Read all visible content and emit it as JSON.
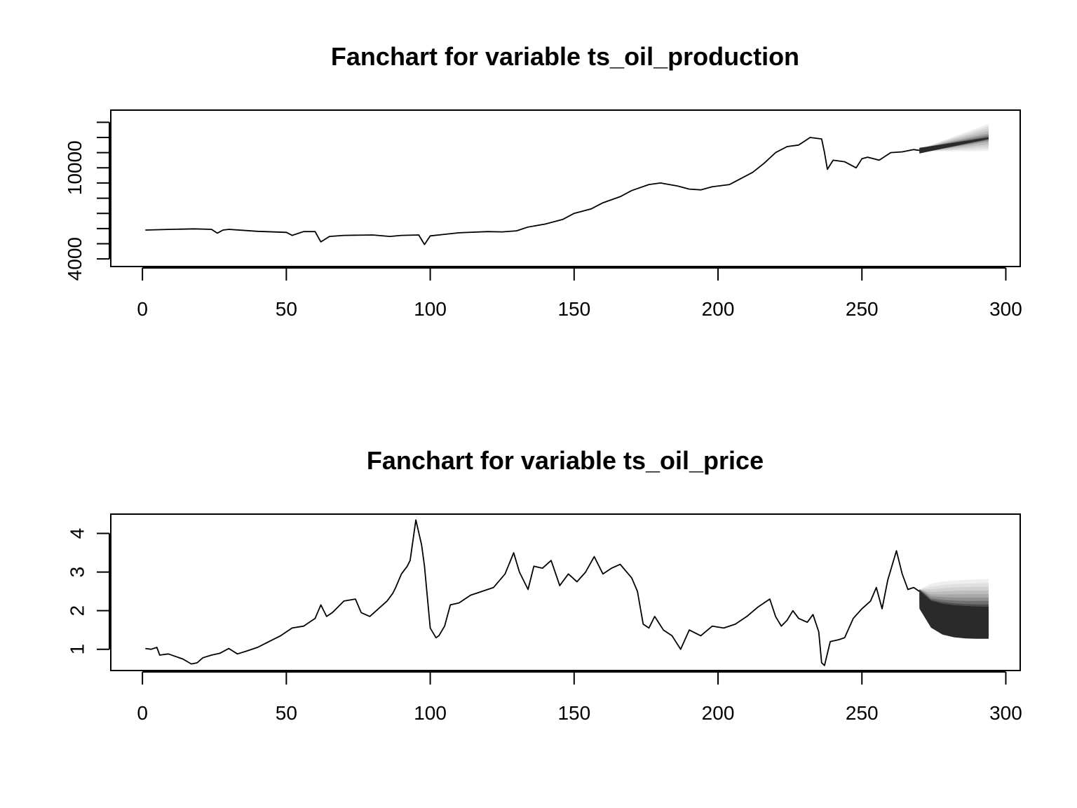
{
  "chart_data": [
    {
      "type": "line",
      "subtype": "fanchart",
      "title": "Fanchart for variable ts_oil_production",
      "xlabel": "",
      "ylabel": "",
      "xlim": [
        -11,
        305
      ],
      "ylim": [
        3500,
        13800
      ],
      "x_ticks": [
        0,
        50,
        100,
        150,
        200,
        250,
        300
      ],
      "y_ticks": [
        4000,
        5000,
        6000,
        7000,
        8000,
        9000,
        10000,
        11000,
        12000,
        13000
      ],
      "y_tick_labels": [
        "4000",
        "",
        "",
        "",
        "",
        "",
        "10000",
        "",
        "",
        ""
      ],
      "grid": false,
      "legend": "none",
      "colors": {
        "line": "#000000",
        "fan": [
          "#efefef",
          "#e0e0e0",
          "#d0d0d0",
          "#bdbdbd",
          "#a8a8a8",
          "#8f8f8f",
          "#707070",
          "#4d4d4d",
          "#2a2a2a"
        ]
      },
      "series": [
        {
          "x": [
            1,
            10,
            18,
            24,
            26,
            28,
            30,
            40,
            50,
            52,
            56,
            60,
            62,
            65,
            70,
            80,
            86,
            90,
            96,
            98,
            100,
            110,
            120,
            125,
            130,
            134,
            140,
            146,
            150,
            156,
            160,
            166,
            170,
            176,
            180,
            186,
            190,
            194,
            198,
            204,
            208,
            212,
            216,
            220,
            224,
            228,
            232,
            236,
            237,
            238,
            240,
            244,
            248,
            250,
            252,
            256,
            260,
            264,
            268,
            270
          ],
          "y": [
            5900,
            5950,
            5980,
            5950,
            5700,
            5900,
            5950,
            5820,
            5750,
            5550,
            5800,
            5800,
            5120,
            5480,
            5550,
            5580,
            5480,
            5550,
            5580,
            4950,
            5520,
            5720,
            5800,
            5780,
            5850,
            6100,
            6300,
            6600,
            7000,
            7300,
            7700,
            8100,
            8500,
            8900,
            9000,
            8800,
            8600,
            8550,
            8750,
            8900,
            9300,
            9700,
            10300,
            11000,
            11400,
            11500,
            12000,
            11900,
            11000,
            9900,
            10500,
            10400,
            10000,
            10600,
            10700,
            10500,
            11000,
            11050,
            11200,
            11150
          ]
        }
      ],
      "forecast": {
        "x": [
          270,
          294
        ],
        "median": [
          11150,
          11950
        ],
        "fan_lower": [
          [
            11080,
            11100
          ],
          [
            11070,
            11250
          ],
          [
            11060,
            11400
          ],
          [
            11040,
            11550
          ],
          [
            11020,
            11700
          ],
          [
            11000,
            11780
          ],
          [
            10980,
            11850
          ],
          [
            10960,
            11880
          ],
          [
            10940,
            11920
          ]
        ],
        "fan_upper": [
          [
            11220,
            12900
          ],
          [
            11230,
            12750
          ],
          [
            11240,
            12600
          ],
          [
            11250,
            12450
          ],
          [
            11260,
            12300
          ],
          [
            11270,
            12200
          ],
          [
            11280,
            12100
          ],
          [
            11300,
            12030
          ],
          [
            11320,
            11990
          ]
        ]
      }
    },
    {
      "type": "line",
      "subtype": "fanchart",
      "title": "Fanchart for variable ts_oil_price",
      "xlabel": "",
      "ylabel": "",
      "xlim": [
        -11,
        305
      ],
      "ylim": [
        0.45,
        4.5
      ],
      "x_ticks": [
        0,
        50,
        100,
        150,
        200,
        250,
        300
      ],
      "y_ticks": [
        1,
        2,
        3,
        4
      ],
      "grid": false,
      "legend": "none",
      "colors": {
        "line": "#000000",
        "fan": [
          "#efefef",
          "#e0e0e0",
          "#d0d0d0",
          "#bdbdbd",
          "#a8a8a8",
          "#8f8f8f",
          "#707070",
          "#4d4d4d",
          "#2a2a2a"
        ]
      },
      "series": [
        {
          "x": [
            1,
            3,
            5,
            6,
            9,
            12,
            14,
            17,
            19,
            21,
            24,
            27,
            30,
            33,
            36,
            40,
            44,
            48,
            52,
            56,
            60,
            62,
            64,
            66,
            68,
            70,
            74,
            76,
            79,
            82,
            85,
            87,
            88,
            90,
            92,
            93,
            95,
            97,
            98,
            100,
            102,
            103,
            105,
            107,
            110,
            114,
            118,
            122,
            126,
            129,
            131,
            134,
            136,
            139,
            142,
            145,
            148,
            151,
            154,
            157,
            160,
            163,
            166,
            170,
            172,
            174,
            176,
            178,
            181,
            184,
            187,
            190,
            194,
            198,
            202,
            206,
            210,
            214,
            218,
            220,
            222,
            224,
            226,
            228,
            231,
            233,
            235,
            236,
            237,
            239,
            242,
            244,
            247,
            250,
            253,
            255,
            257,
            259,
            262,
            264,
            266,
            268,
            270
          ],
          "y": [
            1.02,
            1.0,
            1.05,
            0.85,
            0.88,
            0.8,
            0.75,
            0.62,
            0.65,
            0.78,
            0.85,
            0.9,
            1.02,
            0.88,
            0.95,
            1.05,
            1.2,
            1.35,
            1.55,
            1.6,
            1.8,
            2.15,
            1.85,
            1.95,
            2.1,
            2.25,
            2.3,
            1.95,
            1.85,
            2.05,
            2.25,
            2.45,
            2.6,
            2.95,
            3.15,
            3.3,
            4.35,
            3.7,
            3.15,
            1.55,
            1.3,
            1.35,
            1.6,
            2.15,
            2.2,
            2.4,
            2.5,
            2.6,
            2.95,
            3.5,
            3.0,
            2.55,
            3.15,
            3.1,
            3.3,
            2.65,
            2.95,
            2.75,
            3.0,
            3.4,
            2.95,
            3.1,
            3.2,
            2.85,
            2.5,
            1.65,
            1.55,
            1.85,
            1.5,
            1.35,
            1.0,
            1.5,
            1.35,
            1.6,
            1.55,
            1.65,
            1.85,
            2.1,
            2.3,
            1.85,
            1.6,
            1.75,
            2.0,
            1.8,
            1.7,
            1.9,
            1.45,
            0.65,
            0.58,
            1.2,
            1.25,
            1.3,
            1.8,
            2.05,
            2.25,
            2.6,
            2.05,
            2.8,
            3.55,
            2.95,
            2.55,
            2.6,
            2.5
          ]
        }
      ],
      "forecast": {
        "x": [
          270,
          274,
          278,
          282,
          286,
          290,
          294
        ],
        "median": [
          2.5,
          2.25,
          2.15,
          2.1,
          2.08,
          2.07,
          2.06
        ],
        "fan_lower": [
          [
            2.45,
            2.2,
            2.1,
            2.05,
            2.03,
            2.02,
            2.01
          ],
          [
            2.4,
            2.1,
            1.95,
            1.9,
            1.87,
            1.86,
            1.85
          ],
          [
            2.35,
            2.0,
            1.85,
            1.78,
            1.75,
            1.73,
            1.72
          ],
          [
            2.3,
            1.9,
            1.75,
            1.68,
            1.64,
            1.62,
            1.6
          ],
          [
            2.25,
            1.82,
            1.65,
            1.58,
            1.54,
            1.52,
            1.5
          ],
          [
            2.2,
            1.75,
            1.57,
            1.49,
            1.45,
            1.43,
            1.41
          ],
          [
            2.15,
            1.68,
            1.5,
            1.42,
            1.38,
            1.35,
            1.34
          ],
          [
            2.1,
            1.62,
            1.44,
            1.36,
            1.32,
            1.3,
            1.29
          ],
          [
            2.05,
            1.56,
            1.38,
            1.31,
            1.28,
            1.27,
            1.27
          ]
        ],
        "fan_upper": [
          [
            2.55,
            2.7,
            2.75,
            2.78,
            2.8,
            2.81,
            2.82
          ],
          [
            2.55,
            2.62,
            2.66,
            2.69,
            2.7,
            2.71,
            2.72
          ],
          [
            2.55,
            2.55,
            2.58,
            2.6,
            2.61,
            2.62,
            2.62
          ],
          [
            2.55,
            2.48,
            2.5,
            2.51,
            2.52,
            2.52,
            2.52
          ],
          [
            2.55,
            2.42,
            2.42,
            2.42,
            2.43,
            2.43,
            2.43
          ],
          [
            2.55,
            2.37,
            2.35,
            2.34,
            2.34,
            2.34,
            2.34
          ],
          [
            2.55,
            2.32,
            2.28,
            2.26,
            2.25,
            2.25,
            2.25
          ],
          [
            2.55,
            2.28,
            2.22,
            2.19,
            2.17,
            2.16,
            2.16
          ],
          [
            2.52,
            2.26,
            2.18,
            2.14,
            2.12,
            2.11,
            2.1
          ]
        ]
      }
    }
  ]
}
